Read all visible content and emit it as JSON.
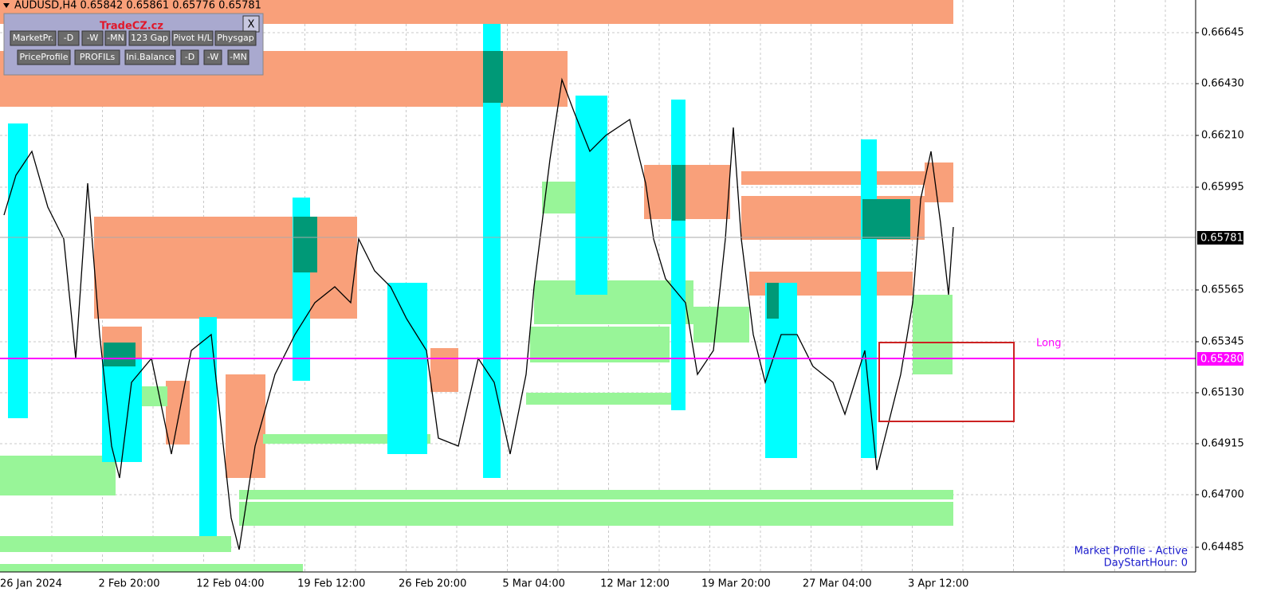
{
  "title_bar": "AUDUSD,H4  0.65842 0.65861 0.65776 0.65781",
  "panel": {
    "brand": "TradeCZ.cz",
    "close": "X",
    "row1": [
      "MarketPr.",
      "-D",
      "-W",
      "-MN",
      "123 Gap",
      "Pivot H/L",
      "Physgap"
    ],
    "row2": [
      "PriceProfile",
      "PROFILs",
      "Ini.Balance",
      "-D",
      "-W",
      "-MN"
    ]
  },
  "price_axis": {
    "ticks": [
      "0.66645",
      "0.66430",
      "0.66210",
      "0.65995",
      "0.65565",
      "0.65345",
      "0.65130",
      "0.64915",
      "0.64700",
      "0.64485"
    ],
    "current_price": "0.65781",
    "line_price": "0.65280"
  },
  "time_axis": [
    "26 Jan 2024",
    "2 Feb 20:00",
    "12 Feb 04:00",
    "19 Feb 12:00",
    "26 Feb 20:00",
    "5 Mar 04:00",
    "12 Mar 12:00",
    "19 Mar 20:00",
    "27 Mar 04:00",
    "3 Apr 12:00"
  ],
  "annotations": {
    "long": "Long",
    "status": "Market Profile - Active",
    "day_start": "DayStartHour: 0"
  }
}
